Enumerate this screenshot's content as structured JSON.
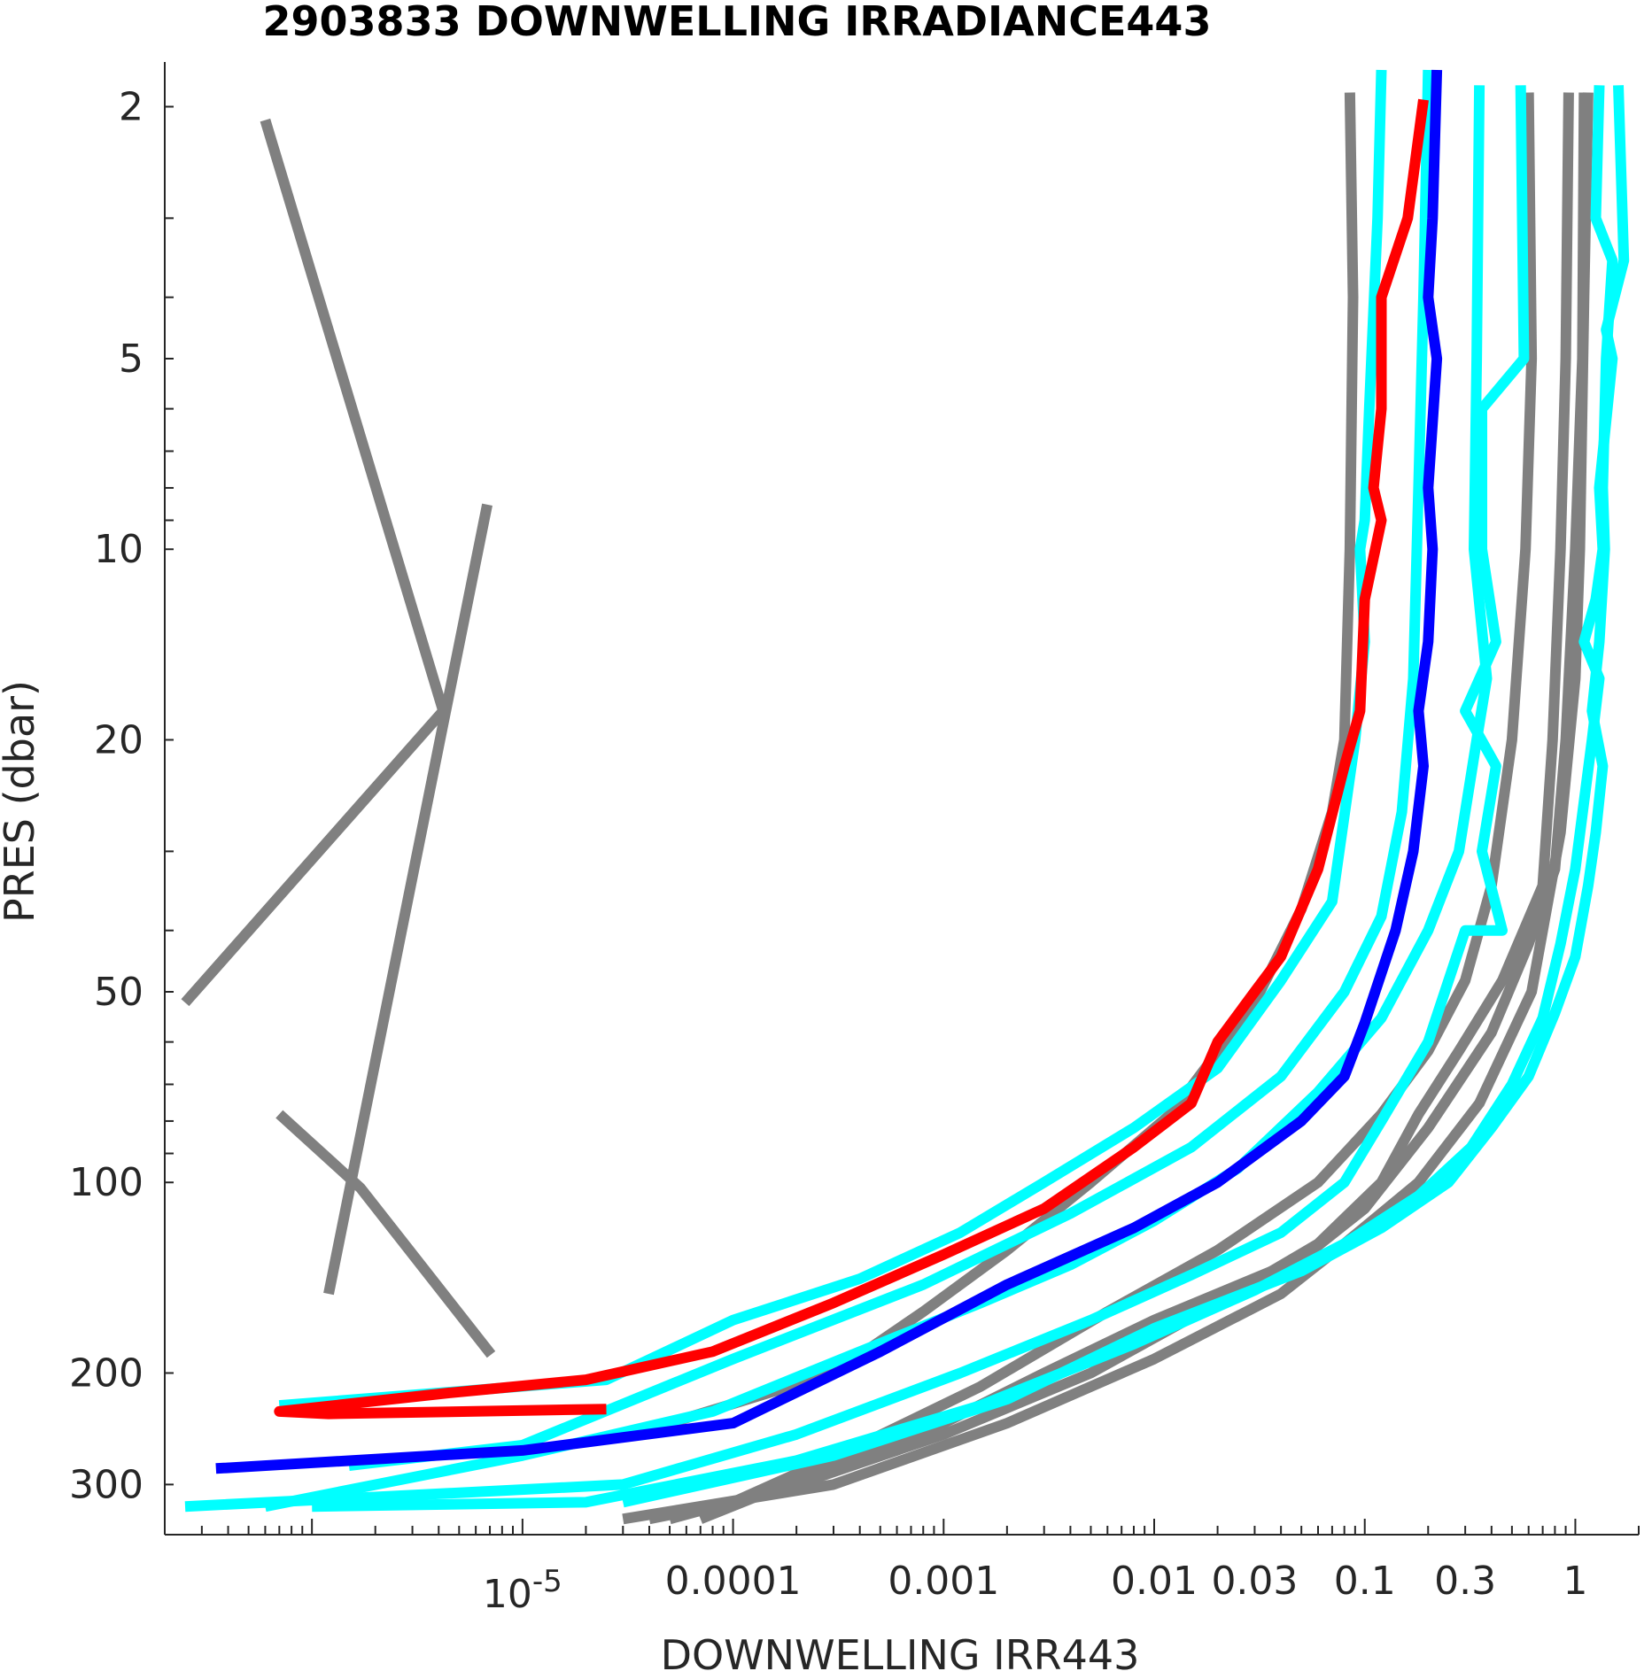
{
  "chart_data": {
    "type": "line",
    "title": "2903833  DOWNWELLING IRRADIANCE443",
    "xlabel": "DOWNWELLING IRR443",
    "ylabel": "PRES (dbar)",
    "x_scale": "log",
    "y_scale": "log",
    "y_reversed": true,
    "xlim": [
      2e-07,
      2.0
    ],
    "ylim": [
      1.7,
      360
    ],
    "x_ticks": [
      {
        "value": 1e-05,
        "base": "10",
        "exp": "-5"
      },
      {
        "value": 0.0001,
        "label": "0.0001"
      },
      {
        "value": 0.001,
        "label": "0.001"
      },
      {
        "value": 0.01,
        "label": "0.01"
      },
      {
        "value": 0.03,
        "label": "0.03"
      },
      {
        "value": 0.1,
        "label": "0.1"
      },
      {
        "value": 0.3,
        "label": "0.3"
      },
      {
        "value": 1,
        "label": "1"
      }
    ],
    "y_ticks": [
      {
        "value": 2,
        "label": "2"
      },
      {
        "value": 5,
        "label": "5"
      },
      {
        "value": 10,
        "label": "10"
      },
      {
        "value": 20,
        "label": "20"
      },
      {
        "value": 50,
        "label": "50"
      },
      {
        "value": 100,
        "label": "100"
      },
      {
        "value": 200,
        "label": "200"
      },
      {
        "value": 300,
        "label": "300"
      }
    ],
    "grid": false,
    "colors": {
      "historical": "#808080",
      "recent": "#00ffff",
      "previous": "#0000ff",
      "latest": "#ff0000"
    },
    "series": [
      {
        "color": "#808080",
        "points": [
          [
            6e-07,
            2.1
          ],
          [
            4.2e-06,
            18
          ],
          [
            2.5e-07,
            52
          ]
        ]
      },
      {
        "color": "#808080",
        "points": [
          [
            6.8e-06,
            8.5
          ],
          [
            1.2e-06,
            150
          ]
        ]
      },
      {
        "color": "#808080",
        "points": [
          [
            7e-07,
            78
          ],
          [
            1.7e-06,
            102
          ],
          [
            7.1e-06,
            187
          ]
        ]
      },
      {
        "color": "#808080",
        "points": [
          [
            0.085,
            1.9
          ],
          [
            0.088,
            4
          ],
          [
            0.085,
            10
          ],
          [
            0.08,
            20
          ],
          [
            0.07,
            26
          ],
          [
            0.05,
            37
          ],
          [
            0.03,
            52
          ],
          [
            0.012,
            78
          ],
          [
            0.005,
            100
          ],
          [
            0.002,
            128
          ],
          [
            0.0008,
            160
          ],
          [
            0.0003,
            200
          ],
          [
            5e-05,
            240
          ]
        ]
      },
      {
        "color": "#808080",
        "points": [
          [
            0.6,
            1.9
          ],
          [
            0.62,
            5
          ],
          [
            0.58,
            10
          ],
          [
            0.5,
            20
          ],
          [
            0.4,
            34
          ],
          [
            0.3,
            48
          ],
          [
            0.2,
            62
          ],
          [
            0.12,
            78
          ],
          [
            0.06,
            100
          ],
          [
            0.02,
            128
          ],
          [
            0.006,
            160
          ],
          [
            0.0015,
            210
          ],
          [
            0.0004,
            260
          ],
          [
            0.0001,
            320
          ],
          [
            4e-05,
            340
          ]
        ]
      },
      {
        "color": "#808080",
        "points": [
          [
            0.93,
            1.9
          ],
          [
            0.9,
            5
          ],
          [
            0.85,
            10
          ],
          [
            0.78,
            20
          ],
          [
            0.7,
            34
          ],
          [
            0.45,
            48
          ],
          [
            0.28,
            62
          ],
          [
            0.18,
            78
          ],
          [
            0.12,
            100
          ],
          [
            0.06,
            125
          ],
          [
            0.02,
            155
          ],
          [
            0.005,
            200
          ],
          [
            0.001,
            250
          ],
          [
            0.0002,
            300
          ],
          [
            5e-05,
            340
          ]
        ]
      },
      {
        "color": "#808080",
        "points": [
          [
            1.1,
            1.9
          ],
          [
            1.08,
            5
          ],
          [
            1.0,
            10
          ],
          [
            0.9,
            20
          ],
          [
            0.8,
            32
          ],
          [
            0.6,
            42
          ],
          [
            0.4,
            58
          ],
          [
            0.2,
            82
          ],
          [
            0.1,
            110
          ],
          [
            0.05,
            132
          ],
          [
            0.01,
            165
          ],
          [
            0.003,
            200
          ],
          [
            0.001,
            240
          ],
          [
            0.0003,
            280
          ],
          [
            7e-05,
            340
          ]
        ]
      },
      {
        "color": "#808080",
        "points": [
          [
            1.15,
            1.9
          ],
          [
            1.1,
            4
          ],
          [
            1.05,
            10
          ],
          [
            1.0,
            16
          ],
          [
            0.85,
            28
          ],
          [
            0.62,
            50
          ],
          [
            0.35,
            75
          ],
          [
            0.18,
            100
          ],
          [
            0.08,
            125
          ],
          [
            0.04,
            150
          ],
          [
            0.01,
            190
          ],
          [
            0.002,
            240
          ],
          [
            0.0003,
            300
          ],
          [
            3e-05,
            340
          ]
        ]
      },
      {
        "color": "#00ffff",
        "points": [
          [
            0.12,
            1.75
          ],
          [
            0.115,
            3
          ],
          [
            0.105,
            6
          ],
          [
            0.1,
            9
          ],
          [
            0.095,
            10
          ],
          [
            0.1,
            14
          ],
          [
            0.09,
            20
          ],
          [
            0.07,
            36
          ],
          [
            0.04,
            48
          ],
          [
            0.02,
            66
          ],
          [
            0.008,
            82
          ],
          [
            0.003,
            100
          ],
          [
            0.0012,
            120
          ],
          [
            0.0004,
            142
          ],
          [
            0.0001,
            165
          ],
          [
            2.5e-05,
            205
          ],
          [
            7e-07,
            225
          ]
        ]
      },
      {
        "color": "#00ffff",
        "points": [
          [
            0.2,
            1.75
          ],
          [
            0.19,
            4
          ],
          [
            0.18,
            8
          ],
          [
            0.17,
            16
          ],
          [
            0.15,
            26
          ],
          [
            0.12,
            38
          ],
          [
            0.08,
            50
          ],
          [
            0.04,
            68
          ],
          [
            0.015,
            88
          ],
          [
            0.004,
            112
          ],
          [
            0.0008,
            145
          ],
          [
            0.0001,
            190
          ],
          [
            1e-05,
            260
          ],
          [
            1.5e-06,
            280
          ]
        ]
      },
      {
        "color": "#00ffff",
        "points": [
          [
            0.35,
            1.85
          ],
          [
            0.34,
            5
          ],
          [
            0.33,
            10
          ],
          [
            0.38,
            16
          ],
          [
            0.34,
            20
          ],
          [
            0.28,
            30
          ],
          [
            0.2,
            40
          ],
          [
            0.12,
            55
          ],
          [
            0.06,
            72
          ],
          [
            0.025,
            95
          ],
          [
            0.01,
            115
          ],
          [
            0.004,
            135
          ],
          [
            0.0015,
            155
          ],
          [
            0.0004,
            185
          ],
          [
            8e-05,
            230
          ],
          [
            1e-05,
            270
          ],
          [
            6e-07,
            325
          ]
        ]
      },
      {
        "color": "#00ffff",
        "points": [
          [
            0.55,
            1.85
          ],
          [
            0.57,
            5
          ],
          [
            0.36,
            6
          ],
          [
            0.36,
            10
          ],
          [
            0.42,
            14
          ],
          [
            0.3,
            18
          ],
          [
            0.42,
            22
          ],
          [
            0.36,
            30
          ],
          [
            0.45,
            40
          ],
          [
            0.3,
            40
          ],
          [
            0.2,
            60
          ],
          [
            0.12,
            80
          ],
          [
            0.08,
            100
          ],
          [
            0.04,
            120
          ],
          [
            0.015,
            140
          ],
          [
            0.005,
            165
          ],
          [
            0.0012,
            200
          ],
          [
            0.0002,
            250
          ],
          [
            3e-05,
            300
          ],
          [
            2.5e-07,
            325
          ]
        ]
      },
      {
        "color": "#00ffff",
        "points": [
          [
            1.3,
            1.85
          ],
          [
            1.25,
            3
          ],
          [
            1.5,
            3.5
          ],
          [
            1.4,
            5
          ],
          [
            1.35,
            8
          ],
          [
            1.38,
            10
          ],
          [
            1.3,
            14
          ],
          [
            1.2,
            18
          ],
          [
            1.35,
            22
          ],
          [
            1.25,
            28
          ],
          [
            1.15,
            34
          ],
          [
            1.0,
            44
          ],
          [
            0.8,
            54
          ],
          [
            0.6,
            68
          ],
          [
            0.4,
            82
          ],
          [
            0.25,
            100
          ],
          [
            0.12,
            118
          ],
          [
            0.05,
            138
          ],
          [
            0.01,
            170
          ],
          [
            0.002,
            220
          ],
          [
            0.0003,
            270
          ],
          [
            3e-05,
            320
          ]
        ]
      },
      {
        "color": "#00ffff",
        "points": [
          [
            1.6,
            1.85
          ],
          [
            1.7,
            3.5
          ],
          [
            1.4,
            4.5
          ],
          [
            1.5,
            5
          ],
          [
            1.3,
            8
          ],
          [
            1.35,
            10
          ],
          [
            1.25,
            12
          ],
          [
            1.1,
            14
          ],
          [
            1.3,
            16
          ],
          [
            1.2,
            20
          ],
          [
            1.1,
            25
          ],
          [
            1.0,
            32
          ],
          [
            0.85,
            42
          ],
          [
            0.7,
            55
          ],
          [
            0.5,
            70
          ],
          [
            0.32,
            88
          ],
          [
            0.18,
            105
          ],
          [
            0.08,
            125
          ],
          [
            0.03,
            148
          ],
          [
            0.008,
            180
          ],
          [
            0.0015,
            225
          ],
          [
            0.0002,
            275
          ],
          [
            2e-05,
            320
          ],
          [
            1e-06,
            325
          ]
        ]
      },
      {
        "color": "#0000ff",
        "points": [
          [
            0.22,
            1.75
          ],
          [
            0.21,
            3
          ],
          [
            0.2,
            4
          ],
          [
            0.22,
            5
          ],
          [
            0.2,
            8
          ],
          [
            0.21,
            10
          ],
          [
            0.2,
            14
          ],
          [
            0.18,
            18
          ],
          [
            0.19,
            22
          ],
          [
            0.17,
            30
          ],
          [
            0.14,
            40
          ],
          [
            0.1,
            56
          ],
          [
            0.08,
            68
          ],
          [
            0.05,
            80
          ],
          [
            0.02,
            100
          ],
          [
            0.008,
            118
          ],
          [
            0.002,
            145
          ],
          [
            0.0005,
            185
          ],
          [
            0.0001,
            240
          ],
          [
            1e-05,
            265
          ],
          [
            3.5e-07,
            283
          ]
        ]
      },
      {
        "color": "#ff0000",
        "points": [
          [
            0.19,
            1.95
          ],
          [
            0.16,
            3
          ],
          [
            0.12,
            4
          ],
          [
            0.12,
            6
          ],
          [
            0.11,
            8
          ],
          [
            0.12,
            9
          ],
          [
            0.1,
            12
          ],
          [
            0.095,
            18
          ],
          [
            0.08,
            22
          ],
          [
            0.06,
            32
          ],
          [
            0.04,
            44
          ],
          [
            0.03,
            50
          ],
          [
            0.02,
            60
          ],
          [
            0.015,
            75
          ],
          [
            0.008,
            88
          ],
          [
            0.003,
            110
          ],
          [
            0.001,
            130
          ],
          [
            0.0003,
            155
          ],
          [
            8e-05,
            185
          ],
          [
            2e-05,
            205
          ],
          [
            4.5e-06,
            215
          ],
          [
            7e-07,
            230
          ],
          [
            1.2e-06,
            232
          ],
          [
            2.5e-05,
            228
          ]
        ]
      }
    ]
  }
}
